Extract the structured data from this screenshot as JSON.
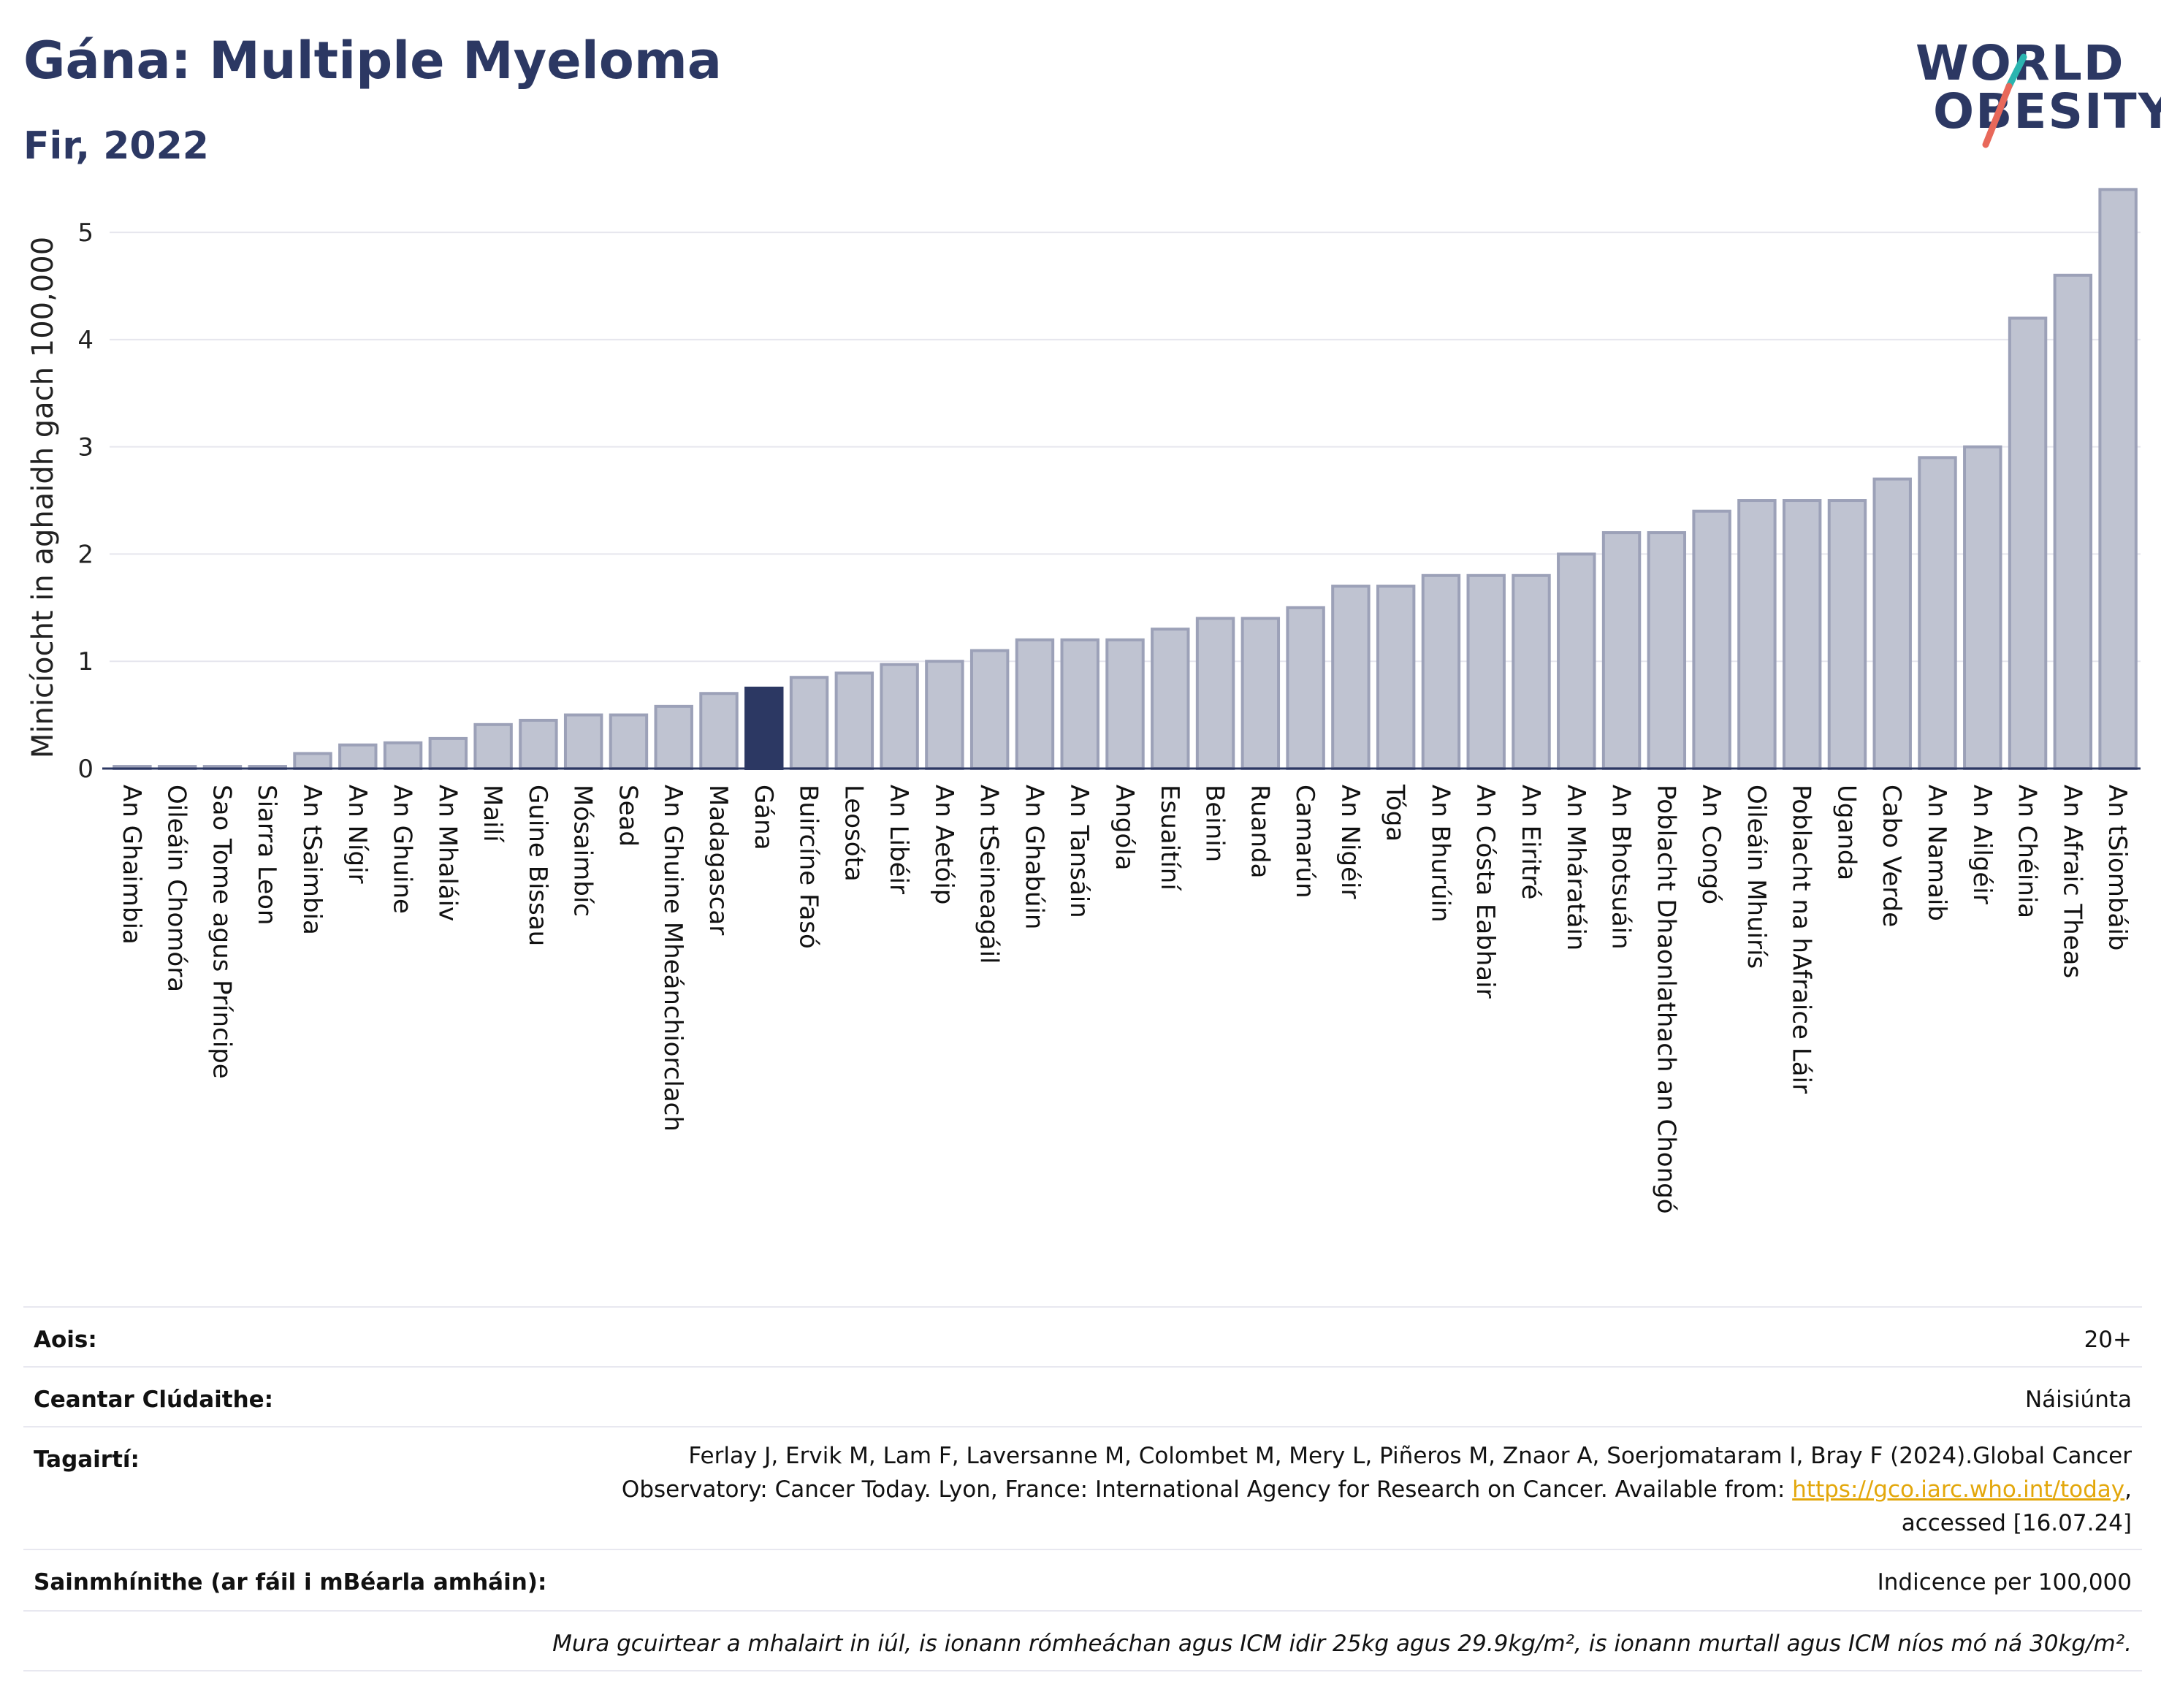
{
  "header": {
    "title": "Gána: Multiple Myeloma",
    "subtitle": "Fir, 2022"
  },
  "logo": {
    "line1": "WORLD",
    "line2": "OBESITY",
    "slash_color_top": "#2bb5b0",
    "slash_color_bottom": "#e8685a"
  },
  "colors": {
    "bar_default": "#bfc3d1",
    "bar_border": "#9ca1b8",
    "bar_highlight": "#2c3863",
    "text": "#2c3863"
  },
  "chart_data": {
    "type": "bar",
    "ylabel": "Minicíocht in aghaidh gach 100,000",
    "ylim": [
      0,
      5.6
    ],
    "yticks": [
      0,
      1,
      2,
      3,
      4,
      5
    ],
    "highlight": "Gána",
    "grid": true,
    "categories": [
      "An Ghaimbia",
      "Oileáin Chomóra",
      "Sao Tome agus Príncipe",
      "Siarra Leon",
      "An tSaimbia",
      "An Nígir",
      "An Ghuine",
      "An Mhaláiv",
      "Mailí",
      "Guine Bissau",
      "Mósaimbíc",
      "Sead",
      "An Ghuine Mheánchiorclach",
      "Madagascar",
      "Gána",
      "Buircíne Fasó",
      "Leosóta",
      "An Libéir",
      "An Aetóip",
      "An tSeineagáil",
      "An Ghabúin",
      "An Tansáin",
      "Angóla",
      "Esuaitíní",
      "Beinin",
      "Ruanda",
      "Camarún",
      "An Nigéir",
      "Tóga",
      "An Bhurúin",
      "An Cósta Eabhair",
      "An Eiritré",
      "An Mháratáin",
      "An Bhotsuáin",
      "Poblacht Dhaonlathach an Chongó",
      "An Congó",
      "Oileáin Mhuirís",
      "Poblacht na hAfraice Láir",
      "Uganda",
      "Cabo Verde",
      "An Namaib",
      "An Ailgéir",
      "An Chéinia",
      "An Afraic Theas",
      "An tSiombáib"
    ],
    "values": [
      0.02,
      0.02,
      0.02,
      0.02,
      0.14,
      0.22,
      0.24,
      0.28,
      0.41,
      0.45,
      0.5,
      0.5,
      0.58,
      0.7,
      0.75,
      0.85,
      0.89,
      0.97,
      1.0,
      1.1,
      1.2,
      1.2,
      1.2,
      1.3,
      1.4,
      1.4,
      1.5,
      1.7,
      1.7,
      1.8,
      1.8,
      1.8,
      2.0,
      2.2,
      2.2,
      2.4,
      2.5,
      2.5,
      2.5,
      2.7,
      2.9,
      3.0,
      4.2,
      4.6,
      5.4
    ]
  },
  "info": {
    "age_label": "Aois:",
    "age_value": "20+",
    "area_label": "Ceantar Clúdaithe:",
    "area_value": "Náisiúnta",
    "refs_label": "Tagairtí:",
    "refs_text_1": "Ferlay J, Ervik M, Lam F, Laversanne M, Colombet M, Mery L, Piñeros M, Znaor A, Soerjomataram I, Bray F (2024).Global Cancer",
    "refs_text_2": "Observatory: Cancer Today. Lyon, France: International Agency for Research on Cancer. Available from: ",
    "refs_link": "https://gco.iarc.who.int/today",
    "refs_text_3": ",",
    "refs_text_4": "accessed [16.07.24]",
    "defs_label": "Sainmhínithe (ar fáil i mBéarla amháin):",
    "defs_value": "Indicence per 100,000",
    "note": "Mura gcuirtear a mhalairt in iúl, is ionann rómheáchan agus ICM idir 25kg agus 29.9kg/m², is ionann murtall agus ICM níos mó ná 30kg/m²."
  }
}
